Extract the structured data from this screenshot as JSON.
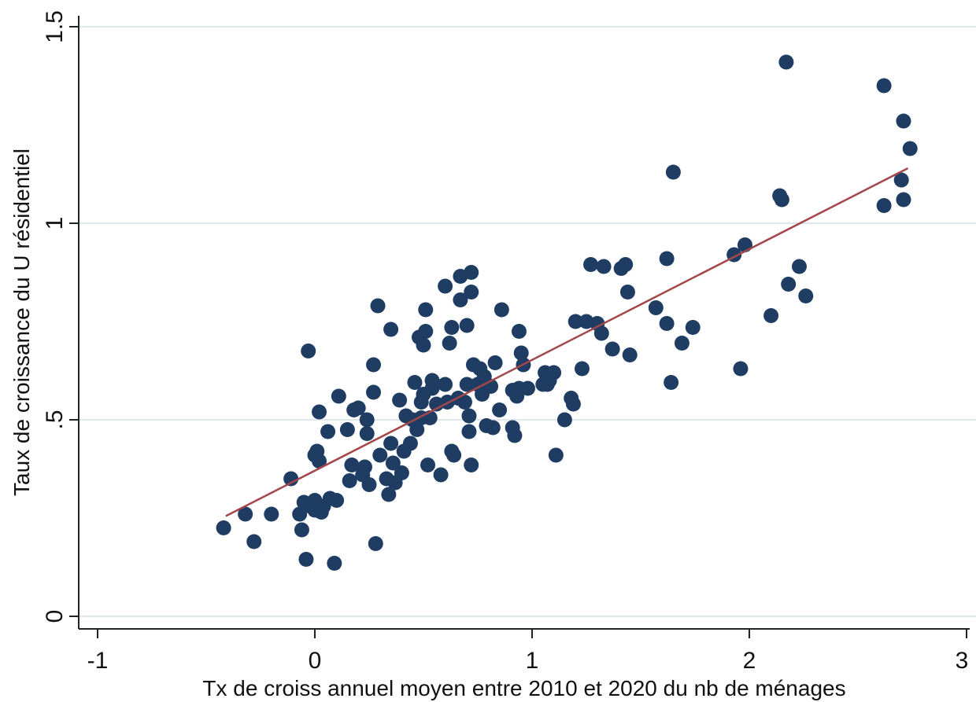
{
  "chart_data": {
    "type": "scatter",
    "title": "",
    "xlabel": "Tx de croiss annuel moyen entre 2010 et 2020 du nb de ménages",
    "ylabel": "Taux de croissance du U résidentiel",
    "xlim": [
      -1,
      3
    ],
    "ylim": [
      0,
      1.5
    ],
    "x_ticks": [
      -1,
      0,
      1,
      2,
      3
    ],
    "x_tick_labels": [
      "-1",
      "0",
      "1",
      "2",
      "3"
    ],
    "y_ticks": [
      0,
      0.5,
      1,
      1.5
    ],
    "y_tick_labels": [
      "0",
      ".5",
      "1",
      "1.5"
    ],
    "grid": "horizontal",
    "colors": {
      "points": "#1f3d63",
      "fit_line": "#a3474a",
      "grid": "#dde8ec"
    },
    "fit_line": {
      "x": [
        -0.41,
        2.73
      ],
      "y": [
        0.255,
        1.14
      ]
    },
    "points": [
      [
        -0.42,
        0.225
      ],
      [
        -0.32,
        0.26
      ],
      [
        -0.28,
        0.19
      ],
      [
        -0.2,
        0.26
      ],
      [
        -0.11,
        0.35
      ],
      [
        -0.07,
        0.26
      ],
      [
        -0.06,
        0.22
      ],
      [
        -0.05,
        0.29
      ],
      [
        -0.04,
        0.145
      ],
      [
        -0.03,
        0.675
      ],
      [
        -0.02,
        0.28
      ],
      [
        0.0,
        0.27
      ],
      [
        0.0,
        0.41
      ],
      [
        0.0,
        0.295
      ],
      [
        0.01,
        0.42
      ],
      [
        0.02,
        0.395
      ],
      [
        0.02,
        0.52
      ],
      [
        0.03,
        0.265
      ],
      [
        0.04,
        0.28
      ],
      [
        0.06,
        0.47
      ],
      [
        0.07,
        0.3
      ],
      [
        0.09,
        0.135
      ],
      [
        0.1,
        0.295
      ],
      [
        0.11,
        0.56
      ],
      [
        0.15,
        0.475
      ],
      [
        0.16,
        0.345
      ],
      [
        0.17,
        0.385
      ],
      [
        0.18,
        0.525
      ],
      [
        0.2,
        0.53
      ],
      [
        0.22,
        0.36
      ],
      [
        0.23,
        0.38
      ],
      [
        0.24,
        0.465
      ],
      [
        0.24,
        0.5
      ],
      [
        0.25,
        0.335
      ],
      [
        0.27,
        0.64
      ],
      [
        0.27,
        0.57
      ],
      [
        0.28,
        0.185
      ],
      [
        0.29,
        0.79
      ],
      [
        0.3,
        0.41
      ],
      [
        0.33,
        0.35
      ],
      [
        0.34,
        0.31
      ],
      [
        0.35,
        0.44
      ],
      [
        0.35,
        0.73
      ],
      [
        0.36,
        0.39
      ],
      [
        0.37,
        0.34
      ],
      [
        0.39,
        0.55
      ],
      [
        0.4,
        0.365
      ],
      [
        0.41,
        0.42
      ],
      [
        0.42,
        0.51
      ],
      [
        0.44,
        0.44
      ],
      [
        0.45,
        0.5
      ],
      [
        0.46,
        0.595
      ],
      [
        0.47,
        0.475
      ],
      [
        0.48,
        0.71
      ],
      [
        0.49,
        0.545
      ],
      [
        0.49,
        0.505
      ],
      [
        0.5,
        0.69
      ],
      [
        0.5,
        0.565
      ],
      [
        0.51,
        0.78
      ],
      [
        0.51,
        0.725
      ],
      [
        0.52,
        0.385
      ],
      [
        0.53,
        0.505
      ],
      [
        0.54,
        0.58
      ],
      [
        0.54,
        0.6
      ],
      [
        0.56,
        0.54
      ],
      [
        0.58,
        0.36
      ],
      [
        0.6,
        0.84
      ],
      [
        0.6,
        0.59
      ],
      [
        0.61,
        0.545
      ],
      [
        0.62,
        0.695
      ],
      [
        0.63,
        0.735
      ],
      [
        0.63,
        0.42
      ],
      [
        0.64,
        0.41
      ],
      [
        0.66,
        0.555
      ],
      [
        0.67,
        0.805
      ],
      [
        0.67,
        0.865
      ],
      [
        0.69,
        0.545
      ],
      [
        0.7,
        0.74
      ],
      [
        0.7,
        0.59
      ],
      [
        0.71,
        0.51
      ],
      [
        0.71,
        0.47
      ],
      [
        0.72,
        0.385
      ],
      [
        0.72,
        0.875
      ],
      [
        0.72,
        0.825
      ],
      [
        0.73,
        0.64
      ],
      [
        0.75,
        0.59
      ],
      [
        0.76,
        0.63
      ],
      [
        0.77,
        0.565
      ],
      [
        0.78,
        0.61
      ],
      [
        0.79,
        0.485
      ],
      [
        0.81,
        0.585
      ],
      [
        0.82,
        0.48
      ],
      [
        0.83,
        0.645
      ],
      [
        0.85,
        0.525
      ],
      [
        0.86,
        0.78
      ],
      [
        0.91,
        0.575
      ],
      [
        0.91,
        0.48
      ],
      [
        0.92,
        0.46
      ],
      [
        0.93,
        0.56
      ],
      [
        0.94,
        0.58
      ],
      [
        0.94,
        0.725
      ],
      [
        0.95,
        0.67
      ],
      [
        0.96,
        0.64
      ],
      [
        0.98,
        0.58
      ],
      [
        1.05,
        0.59
      ],
      [
        1.06,
        0.62
      ],
      [
        1.07,
        0.59
      ],
      [
        1.08,
        0.6
      ],
      [
        1.1,
        0.62
      ],
      [
        1.11,
        0.41
      ],
      [
        1.15,
        0.5
      ],
      [
        1.18,
        0.555
      ],
      [
        1.19,
        0.54
      ],
      [
        1.2,
        0.75
      ],
      [
        1.23,
        0.63
      ],
      [
        1.25,
        0.75
      ],
      [
        1.27,
        0.895
      ],
      [
        1.3,
        0.745
      ],
      [
        1.32,
        0.72
      ],
      [
        1.33,
        0.89
      ],
      [
        1.37,
        0.68
      ],
      [
        1.41,
        0.885
      ],
      [
        1.43,
        0.895
      ],
      [
        1.44,
        0.825
      ],
      [
        1.45,
        0.665
      ],
      [
        1.57,
        0.785
      ],
      [
        1.62,
        0.745
      ],
      [
        1.62,
        0.91
      ],
      [
        1.64,
        0.595
      ],
      [
        1.65,
        1.13
      ],
      [
        1.69,
        0.695
      ],
      [
        1.74,
        0.735
      ],
      [
        1.93,
        0.92
      ],
      [
        1.96,
        0.63
      ],
      [
        1.98,
        0.945
      ],
      [
        2.1,
        0.765
      ],
      [
        2.14,
        1.07
      ],
      [
        2.15,
        1.06
      ],
      [
        2.17,
        1.41
      ],
      [
        2.18,
        0.845
      ],
      [
        2.23,
        0.89
      ],
      [
        2.26,
        0.815
      ],
      [
        2.62,
        1.35
      ],
      [
        2.62,
        1.045
      ],
      [
        2.7,
        1.11
      ],
      [
        2.71,
        1.26
      ],
      [
        2.71,
        1.06
      ],
      [
        2.74,
        1.19
      ]
    ]
  }
}
